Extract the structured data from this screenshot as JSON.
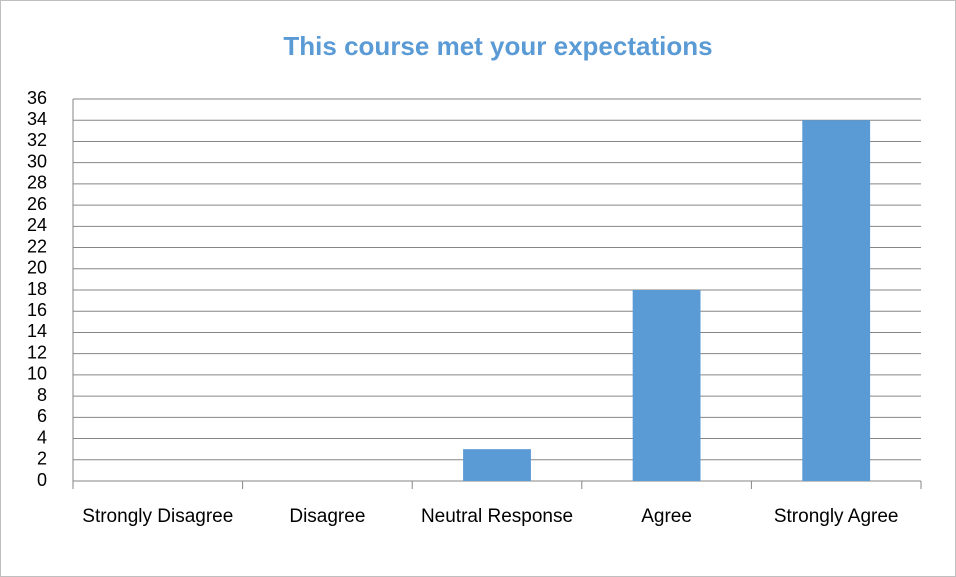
{
  "chart_data": {
    "type": "bar",
    "title": "This course met your expectations",
    "categories": [
      "Strongly Disagree",
      "Disagree",
      "Neutral Response",
      "Agree",
      "Strongly Agree"
    ],
    "values": [
      0,
      0,
      3,
      18,
      34
    ],
    "color": "#5b9bd5",
    "ylim": [
      0,
      36
    ],
    "yticks": [
      0,
      2,
      4,
      6,
      8,
      10,
      12,
      14,
      16,
      18,
      20,
      22,
      24,
      26,
      28,
      30,
      32,
      34,
      36
    ],
    "grid": true
  }
}
